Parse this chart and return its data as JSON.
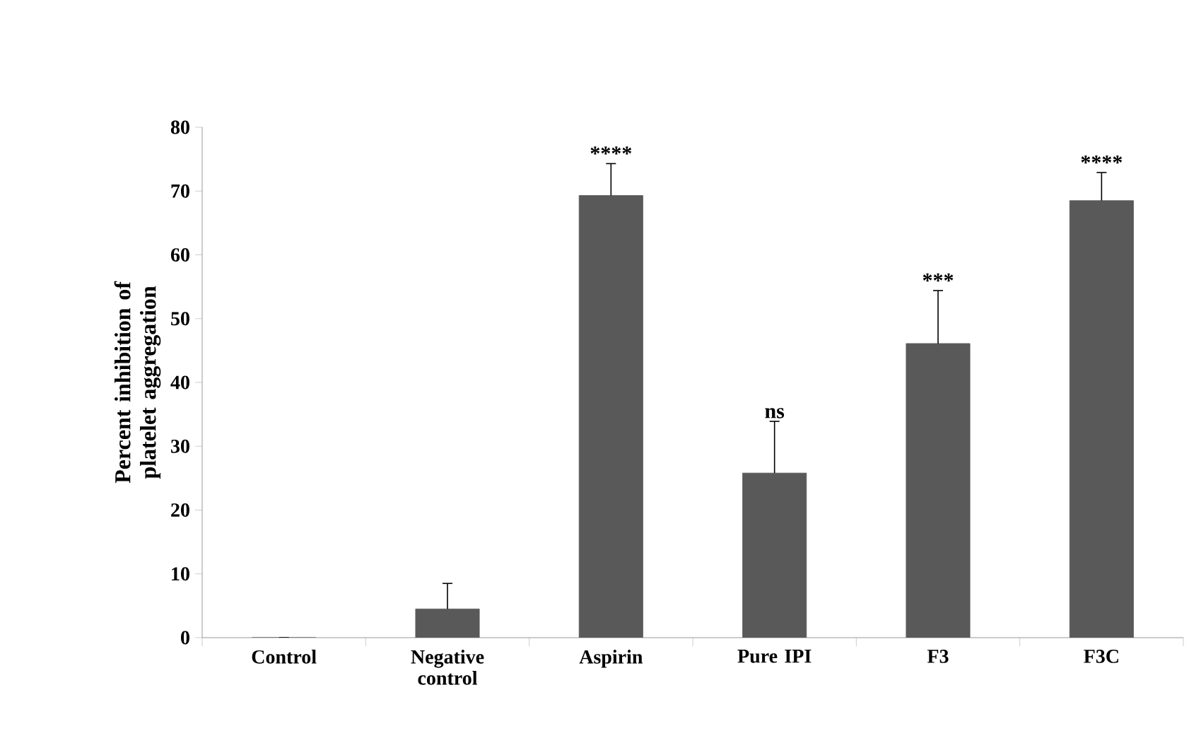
{
  "chart_data": {
    "type": "bar",
    "ylabel": "Percent inhibition  of platelet aggregation",
    "categories": [
      "Control",
      "Negative control",
      "Aspirin",
      "Pure IPI",
      "F3",
      "F3C"
    ],
    "values": [
      0,
      4.5,
      69.3,
      25.8,
      46.1,
      68.5
    ],
    "errors": [
      null,
      4,
      5,
      8.1,
      8.3,
      4.4
    ],
    "color": "#595959",
    "ylim": [
      0,
      80
    ],
    "yticks": [
      0,
      10,
      20,
      30,
      40,
      50,
      60,
      70,
      80
    ],
    "annotations": [
      {
        "text": "****",
        "x": "Aspirin",
        "y": 74.3
      },
      {
        "text": "ns",
        "x": "Pure IPI",
        "y": 33.9
      },
      {
        "text": "***",
        "x": "F3",
        "y": 54.4
      },
      {
        "text": "****",
        "x": "F3C",
        "y": 72.9
      }
    ],
    "grid": false
  }
}
